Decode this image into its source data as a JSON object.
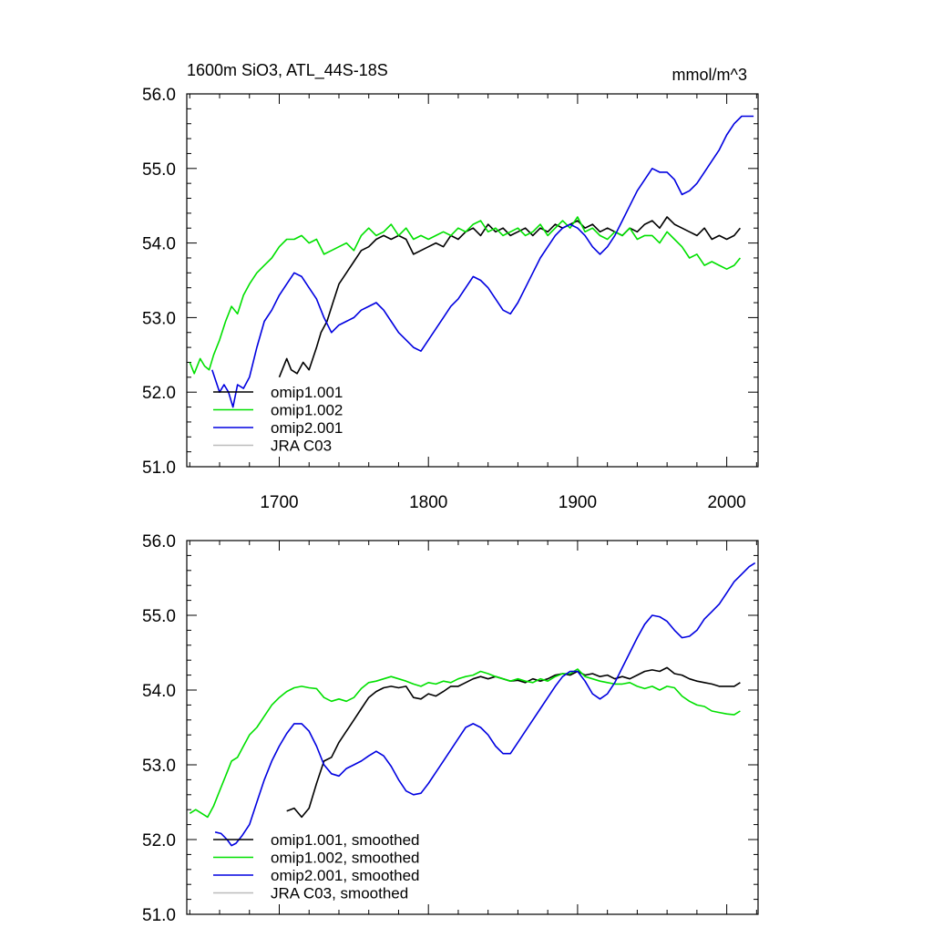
{
  "colors": {
    "omip1_001": "#000000",
    "omip1_002": "#00e000",
    "omip2_001": "#0000e0",
    "jra_c03": "#bbbbbb"
  },
  "chart_data": [
    {
      "type": "line",
      "panel": "raw",
      "title": "1600m SiO3, ATL_44S-18S",
      "units": "mmol/m^3",
      "xlim": [
        1638,
        2021
      ],
      "ylim": [
        51.0,
        56.0
      ],
      "x_tick_labels": [
        "1700",
        "1800",
        "1900",
        "2000"
      ],
      "y_tick_labels": [
        "51.0",
        "52.0",
        "53.0",
        "54.0",
        "55.0",
        "56.0"
      ],
      "legend_position": "lower-left",
      "series": [
        {
          "name": "omip1.001",
          "color": "#000000",
          "x": [
            1700,
            1705,
            1708,
            1712,
            1716,
            1720,
            1725,
            1728,
            1732,
            1736,
            1740,
            1745,
            1750,
            1755,
            1760,
            1765,
            1770,
            1775,
            1780,
            1785,
            1790,
            1795,
            1800,
            1805,
            1810,
            1815,
            1820,
            1825,
            1830,
            1835,
            1840,
            1845,
            1850,
            1855,
            1860,
            1865,
            1870,
            1875,
            1880,
            1885,
            1890,
            1895,
            1900,
            1905,
            1910,
            1915,
            1920,
            1925,
            1930,
            1935,
            1940,
            1945,
            1950,
            1955,
            1960,
            1965,
            1970,
            1975,
            1980,
            1985,
            1990,
            1995,
            2000,
            2005,
            2009
          ],
          "y": [
            52.2,
            52.45,
            52.3,
            52.25,
            52.4,
            52.3,
            52.6,
            52.8,
            52.95,
            53.2,
            53.45,
            53.6,
            53.75,
            53.9,
            53.95,
            54.05,
            54.1,
            54.05,
            54.1,
            54.05,
            53.85,
            53.9,
            53.95,
            54.0,
            53.95,
            54.1,
            54.05,
            54.15,
            54.2,
            54.1,
            54.25,
            54.15,
            54.2,
            54.1,
            54.15,
            54.2,
            54.1,
            54.2,
            54.15,
            54.25,
            54.2,
            54.25,
            54.3,
            54.2,
            54.25,
            54.15,
            54.2,
            54.15,
            54.1,
            54.2,
            54.15,
            54.25,
            54.3,
            54.2,
            54.35,
            54.25,
            54.2,
            54.15,
            54.1,
            54.2,
            54.05,
            54.1,
            54.05,
            54.1,
            54.2
          ]
        },
        {
          "name": "omip1.002",
          "color": "#00e000",
          "x": [
            1640,
            1643,
            1647,
            1650,
            1653,
            1656,
            1660,
            1664,
            1668,
            1672,
            1676,
            1680,
            1685,
            1690,
            1695,
            1700,
            1705,
            1710,
            1715,
            1720,
            1725,
            1730,
            1735,
            1740,
            1745,
            1750,
            1755,
            1760,
            1765,
            1770,
            1775,
            1780,
            1785,
            1790,
            1795,
            1800,
            1805,
            1810,
            1815,
            1820,
            1825,
            1830,
            1835,
            1840,
            1845,
            1850,
            1855,
            1860,
            1865,
            1870,
            1875,
            1880,
            1885,
            1890,
            1895,
            1900,
            1905,
            1910,
            1915,
            1920,
            1925,
            1930,
            1935,
            1940,
            1945,
            1950,
            1955,
            1960,
            1965,
            1970,
            1975,
            1980,
            1985,
            1990,
            1995,
            2000,
            2005,
            2009
          ],
          "y": [
            52.4,
            52.25,
            52.45,
            52.35,
            52.3,
            52.5,
            52.7,
            52.95,
            53.15,
            53.05,
            53.3,
            53.45,
            53.6,
            53.7,
            53.8,
            53.95,
            54.05,
            54.05,
            54.1,
            54.0,
            54.05,
            53.85,
            53.9,
            53.95,
            54.0,
            53.9,
            54.1,
            54.2,
            54.1,
            54.15,
            54.25,
            54.1,
            54.2,
            54.05,
            54.1,
            54.05,
            54.1,
            54.15,
            54.1,
            54.2,
            54.15,
            54.25,
            54.3,
            54.15,
            54.2,
            54.1,
            54.15,
            54.2,
            54.1,
            54.15,
            54.25,
            54.1,
            54.2,
            54.3,
            54.2,
            54.35,
            54.15,
            54.2,
            54.1,
            54.05,
            54.15,
            54.1,
            54.2,
            54.05,
            54.1,
            54.1,
            54.0,
            54.15,
            54.05,
            53.95,
            53.8,
            53.85,
            53.7,
            53.75,
            53.7,
            53.65,
            53.7,
            53.8
          ]
        },
        {
          "name": "omip2.001",
          "color": "#0000e0",
          "x": [
            1655,
            1660,
            1663,
            1666,
            1669,
            1672,
            1676,
            1680,
            1685,
            1690,
            1695,
            1700,
            1705,
            1710,
            1715,
            1720,
            1725,
            1730,
            1735,
            1740,
            1745,
            1750,
            1755,
            1760,
            1765,
            1770,
            1775,
            1780,
            1785,
            1790,
            1795,
            1800,
            1805,
            1810,
            1815,
            1820,
            1825,
            1830,
            1835,
            1840,
            1845,
            1850,
            1855,
            1860,
            1865,
            1870,
            1875,
            1880,
            1885,
            1890,
            1895,
            1900,
            1905,
            1910,
            1915,
            1920,
            1925,
            1930,
            1935,
            1940,
            1945,
            1950,
            1955,
            1960,
            1965,
            1970,
            1975,
            1980,
            1985,
            1990,
            1995,
            2000,
            2005,
            2010,
            2015,
            2018
          ],
          "y": [
            52.3,
            52.0,
            52.1,
            52.0,
            51.8,
            52.1,
            52.05,
            52.2,
            52.6,
            52.95,
            53.1,
            53.3,
            53.45,
            53.6,
            53.55,
            53.4,
            53.25,
            53.0,
            52.8,
            52.9,
            52.95,
            53.0,
            53.1,
            53.15,
            53.2,
            53.1,
            52.95,
            52.8,
            52.7,
            52.6,
            52.55,
            52.7,
            52.85,
            53.0,
            53.15,
            53.25,
            53.4,
            53.55,
            53.5,
            53.4,
            53.25,
            53.1,
            53.05,
            53.2,
            53.4,
            53.6,
            53.8,
            53.95,
            54.1,
            54.2,
            54.25,
            54.2,
            54.1,
            53.95,
            53.85,
            53.95,
            54.1,
            54.3,
            54.5,
            54.7,
            54.85,
            55.0,
            54.95,
            54.95,
            54.85,
            54.65,
            54.7,
            54.8,
            54.95,
            55.1,
            55.25,
            55.45,
            55.6,
            55.7,
            55.7,
            55.7
          ]
        },
        {
          "name": "JRA C03",
          "color": "#bbbbbb",
          "x": [],
          "y": []
        }
      ]
    },
    {
      "type": "line",
      "panel": "smoothed",
      "xlim": [
        1638,
        2021
      ],
      "ylim": [
        51.0,
        56.0
      ],
      "y_tick_labels": [
        "51.0",
        "52.0",
        "53.0",
        "54.0",
        "55.0",
        "56.0"
      ],
      "legend_position": "lower-left",
      "series": [
        {
          "name": "omip1.001, smoothed",
          "color": "#000000",
          "x": [
            1705,
            1710,
            1715,
            1720,
            1725,
            1730,
            1735,
            1740,
            1745,
            1750,
            1755,
            1760,
            1765,
            1770,
            1775,
            1780,
            1785,
            1790,
            1795,
            1800,
            1805,
            1810,
            1815,
            1820,
            1825,
            1830,
            1835,
            1840,
            1845,
            1850,
            1855,
            1860,
            1865,
            1870,
            1875,
            1880,
            1885,
            1890,
            1895,
            1900,
            1905,
            1910,
            1915,
            1920,
            1925,
            1930,
            1935,
            1940,
            1945,
            1950,
            1955,
            1960,
            1965,
            1970,
            1975,
            1980,
            1985,
            1990,
            1995,
            2000,
            2005,
            2009
          ],
          "y": [
            52.38,
            52.42,
            52.3,
            52.42,
            52.75,
            53.05,
            53.1,
            53.3,
            53.45,
            53.6,
            53.75,
            53.9,
            53.98,
            54.03,
            54.05,
            54.03,
            54.05,
            53.9,
            53.88,
            53.95,
            53.92,
            53.98,
            54.05,
            54.05,
            54.1,
            54.15,
            54.18,
            54.15,
            54.18,
            54.15,
            54.12,
            54.13,
            54.1,
            54.15,
            54.12,
            54.15,
            54.2,
            54.22,
            54.2,
            54.25,
            54.2,
            54.22,
            54.18,
            54.2,
            54.15,
            54.18,
            54.15,
            54.2,
            54.25,
            54.27,
            54.25,
            54.3,
            54.22,
            54.2,
            54.15,
            54.12,
            54.1,
            54.08,
            54.05,
            54.05,
            54.05,
            54.1
          ]
        },
        {
          "name": "omip1.002, smoothed",
          "color": "#00e000",
          "x": [
            1640,
            1644,
            1648,
            1652,
            1656,
            1660,
            1664,
            1668,
            1672,
            1676,
            1680,
            1685,
            1690,
            1695,
            1700,
            1705,
            1710,
            1715,
            1720,
            1725,
            1730,
            1735,
            1740,
            1745,
            1750,
            1755,
            1760,
            1765,
            1770,
            1775,
            1780,
            1785,
            1790,
            1795,
            1800,
            1805,
            1810,
            1815,
            1820,
            1825,
            1830,
            1835,
            1840,
            1845,
            1850,
            1855,
            1860,
            1865,
            1870,
            1875,
            1880,
            1885,
            1890,
            1895,
            1900,
            1905,
            1910,
            1915,
            1920,
            1925,
            1930,
            1935,
            1940,
            1945,
            1950,
            1955,
            1960,
            1965,
            1970,
            1975,
            1980,
            1985,
            1990,
            1995,
            2000,
            2005,
            2009
          ],
          "y": [
            52.35,
            52.4,
            52.35,
            52.3,
            52.45,
            52.65,
            52.85,
            53.05,
            53.1,
            53.25,
            53.4,
            53.5,
            53.65,
            53.8,
            53.9,
            53.98,
            54.03,
            54.05,
            54.03,
            54.02,
            53.9,
            53.85,
            53.88,
            53.85,
            53.9,
            54.02,
            54.1,
            54.12,
            54.15,
            54.18,
            54.15,
            54.12,
            54.08,
            54.05,
            54.1,
            54.08,
            54.12,
            54.1,
            54.15,
            54.18,
            54.2,
            54.25,
            54.22,
            54.18,
            54.15,
            54.12,
            54.15,
            54.12,
            54.1,
            54.15,
            54.12,
            54.18,
            54.22,
            54.22,
            54.28,
            54.18,
            54.15,
            54.12,
            54.1,
            54.08,
            54.08,
            54.1,
            54.05,
            54.02,
            54.05,
            54.0,
            54.05,
            54.03,
            53.92,
            53.85,
            53.8,
            53.78,
            53.72,
            53.7,
            53.68,
            53.67,
            53.72
          ]
        },
        {
          "name": "omip2.001, smoothed",
          "color": "#0000e0",
          "x": [
            1657,
            1661,
            1665,
            1668,
            1671,
            1675,
            1680,
            1685,
            1690,
            1695,
            1700,
            1705,
            1710,
            1715,
            1720,
            1725,
            1730,
            1735,
            1740,
            1745,
            1750,
            1755,
            1760,
            1765,
            1770,
            1775,
            1780,
            1785,
            1790,
            1795,
            1800,
            1805,
            1810,
            1815,
            1820,
            1825,
            1830,
            1835,
            1840,
            1845,
            1850,
            1855,
            1860,
            1865,
            1870,
            1875,
            1880,
            1885,
            1890,
            1895,
            1900,
            1905,
            1910,
            1915,
            1920,
            1925,
            1930,
            1935,
            1940,
            1945,
            1950,
            1955,
            1960,
            1965,
            1970,
            1975,
            1980,
            1985,
            1990,
            1995,
            2000,
            2005,
            2010,
            2015,
            2019
          ],
          "y": [
            52.1,
            52.08,
            52.0,
            51.92,
            51.95,
            52.05,
            52.2,
            52.5,
            52.8,
            53.05,
            53.25,
            53.42,
            53.55,
            53.55,
            53.45,
            53.25,
            53.0,
            52.88,
            52.85,
            52.95,
            53.0,
            53.05,
            53.12,
            53.18,
            53.12,
            52.98,
            52.8,
            52.65,
            52.6,
            52.62,
            52.75,
            52.9,
            53.05,
            53.2,
            53.35,
            53.5,
            53.55,
            53.5,
            53.4,
            53.25,
            53.15,
            53.15,
            53.3,
            53.45,
            53.6,
            53.75,
            53.9,
            54.05,
            54.18,
            54.25,
            54.25,
            54.12,
            53.95,
            53.88,
            53.95,
            54.1,
            54.3,
            54.5,
            54.7,
            54.88,
            55.0,
            54.98,
            54.92,
            54.8,
            54.7,
            54.72,
            54.8,
            54.95,
            55.05,
            55.15,
            55.3,
            55.45,
            55.55,
            55.65,
            55.7
          ]
        },
        {
          "name": "JRA C03, smoothed",
          "color": "#bbbbbb",
          "x": [],
          "y": []
        }
      ]
    }
  ]
}
